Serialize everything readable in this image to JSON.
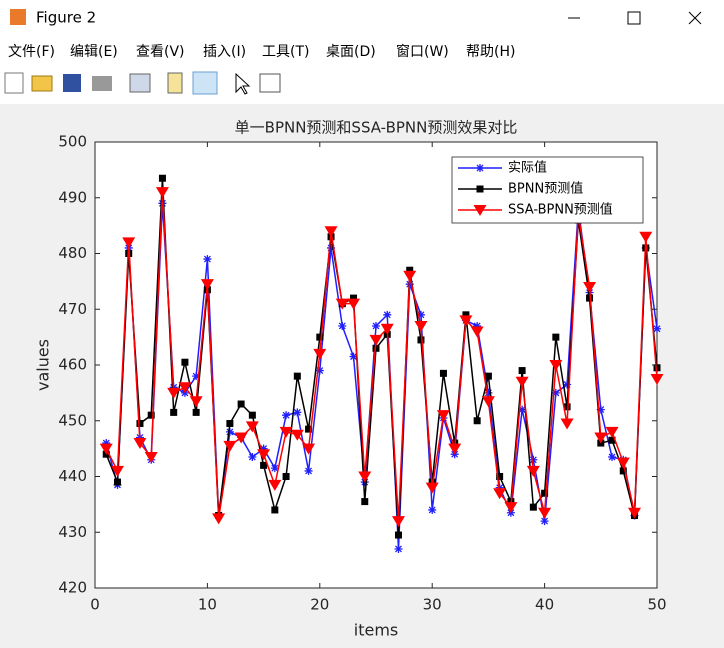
{
  "window": {
    "title": "Figure 2",
    "menu": [
      "文件(F)",
      "编辑(E)",
      "查看(V)",
      "插入(I)",
      "工具(T)",
      "桌面(D)",
      "窗口(W)",
      "帮助(H)"
    ]
  },
  "chart_data": {
    "type": "line",
    "title": "单一BPNN预测和SSA-BPNN预测效果对比",
    "x_label": "items",
    "y_label": "values",
    "x": [
      1,
      2,
      3,
      4,
      5,
      6,
      7,
      8,
      9,
      10,
      11,
      12,
      13,
      14,
      15,
      16,
      17,
      18,
      19,
      20,
      21,
      22,
      23,
      24,
      25,
      26,
      27,
      28,
      29,
      30,
      31,
      32,
      33,
      34,
      35,
      36,
      37,
      38,
      39,
      40,
      41,
      42,
      43,
      44,
      45,
      46,
      47,
      48,
      49,
      50
    ],
    "xlim": [
      0,
      50
    ],
    "xticks": [
      0,
      10,
      20,
      30,
      40,
      50
    ],
    "ylim": [
      420,
      500
    ],
    "yticks": [
      420,
      430,
      440,
      450,
      460,
      470,
      480,
      490,
      500
    ],
    "grid": false,
    "legend": "northeast",
    "series": [
      {
        "name": "实际值",
        "color": "#1f1fff",
        "marker": "asterisk",
        "values": [
          446,
          438.5,
          481,
          447,
          443,
          489,
          456,
          455,
          458,
          479,
          433,
          448,
          447,
          443.5,
          445,
          441.5,
          451,
          451.5,
          441,
          459,
          481,
          467,
          461.5,
          439,
          467,
          469,
          427,
          474.5,
          469,
          434,
          450.5,
          444,
          468,
          467,
          455,
          438,
          433.5,
          452,
          443,
          432,
          455,
          456.5,
          488,
          473,
          452,
          443.5,
          443,
          433,
          481,
          466.5
        ]
      },
      {
        "name": "BPNN预测值",
        "color": "#000000",
        "marker": "square",
        "values": [
          444,
          439,
          480,
          449.5,
          451,
          493.5,
          451.5,
          460.5,
          451.5,
          473.5,
          433,
          449.5,
          453,
          451,
          442,
          434,
          440,
          458,
          448.5,
          465,
          483,
          471,
          472,
          435.5,
          463,
          465.5,
          429.5,
          477,
          464.5,
          439,
          458.5,
          446,
          469,
          450,
          458,
          440,
          435.5,
          459,
          434.5,
          437,
          465,
          452.5,
          486,
          472,
          446,
          446.5,
          441,
          433,
          481,
          459.5
        ]
      },
      {
        "name": "SSA-BPNN预测值",
        "color": "#ff0000",
        "marker": "triangle-down",
        "values": [
          445,
          441,
          482,
          446,
          443.5,
          491,
          455,
          456,
          453.5,
          474.5,
          432.5,
          445.5,
          447,
          449,
          444,
          438.5,
          448,
          447.5,
          445,
          462,
          484,
          471,
          471,
          440,
          464.5,
          466.5,
          432,
          476,
          467,
          438,
          451,
          445,
          468,
          466,
          453.5,
          437,
          434.5,
          457,
          441,
          433.5,
          460,
          449.5,
          487,
          474,
          447,
          448,
          442.5,
          433.5,
          483,
          457.5
        ]
      }
    ]
  }
}
